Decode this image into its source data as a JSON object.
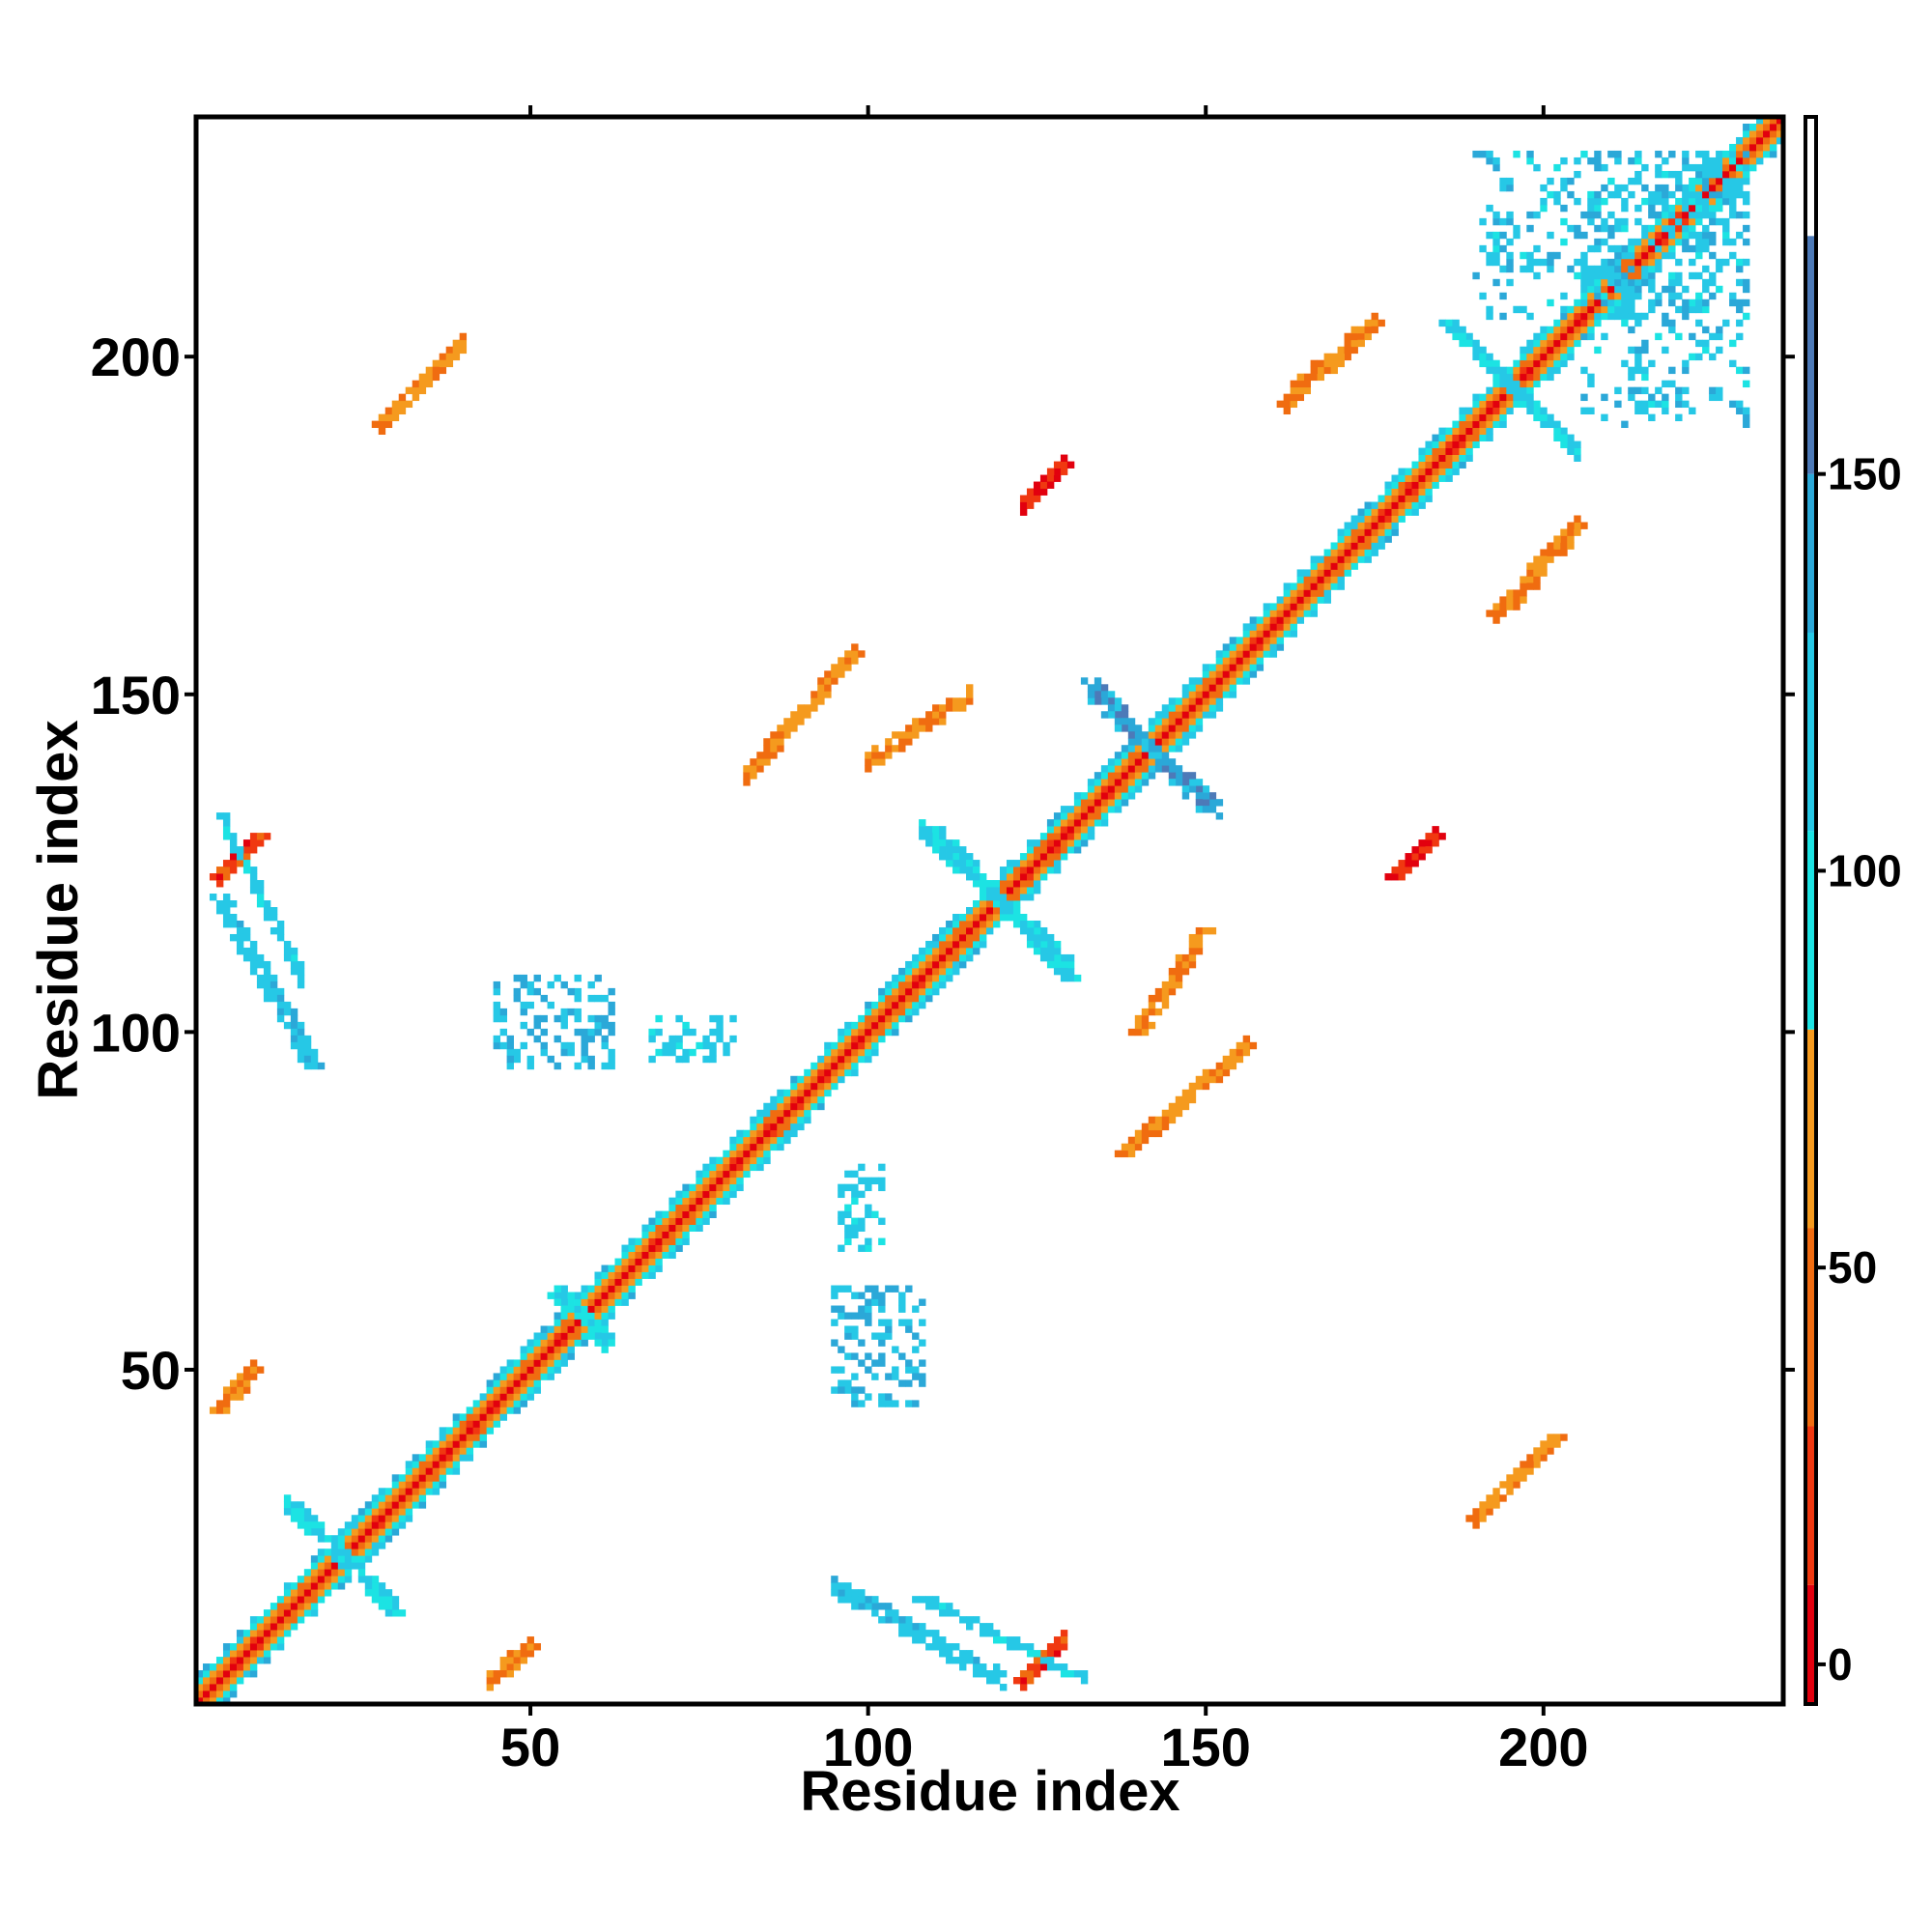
{
  "chart_data": {
    "type": "heatmap",
    "title": "",
    "xlabel": "Residue index",
    "ylabel": "Residue index",
    "xlim": [
      1,
      235
    ],
    "ylim": [
      1,
      235
    ],
    "x_ticks": [
      50,
      100,
      150,
      200
    ],
    "y_ticks": [
      50,
      100,
      150,
      200
    ],
    "colorbar": {
      "range": [
        -5,
        195
      ],
      "ticks": [
        0,
        50,
        100,
        150
      ],
      "stops": [
        {
          "from": -5,
          "to": 10,
          "color": "#e2000e"
        },
        {
          "from": 10,
          "to": 30,
          "color": "#f03810"
        },
        {
          "from": 30,
          "to": 55,
          "color": "#f06c10"
        },
        {
          "from": 55,
          "to": 80,
          "color": "#f59a1e"
        },
        {
          "from": 80,
          "to": 105,
          "color": "#1ce3e3"
        },
        {
          "from": 105,
          "to": 130,
          "color": "#26c8e6"
        },
        {
          "from": 130,
          "to": 150,
          "color": "#2ba8d8"
        },
        {
          "from": 150,
          "to": 180,
          "color": "#4d7ab8"
        },
        {
          "from": 180,
          "to": 195,
          "color": "#ffffff"
        }
      ]
    },
    "diagonal": {
      "from": 1,
      "to": 235,
      "core_value": 0,
      "band_values": [
        40,
        65,
        95,
        120
      ]
    },
    "clusters": [
      {
        "label": "beta-pair-A",
        "x_range": [
          4,
          9
        ],
        "y_range": [
          44,
          50
        ],
        "value": 55,
        "orientation": "parallel"
      },
      {
        "label": "beta-pair-B",
        "x_range": [
          45,
          50
        ],
        "y_range": [
          4,
          9
        ],
        "value": 55,
        "orientation": "parallel"
      },
      {
        "label": "beta-pair-C",
        "x_range": [
          4,
          10
        ],
        "y_range": [
          123,
          129
        ],
        "value": 20,
        "orientation": "parallel"
      },
      {
        "label": "beta-pair-D",
        "x_range": [
          123,
          129
        ],
        "y_range": [
          4,
          10
        ],
        "value": 20,
        "orientation": "parallel"
      },
      {
        "label": "beta-pair-E",
        "x_range": [
          123,
          129
        ],
        "y_range": [
          178,
          184
        ],
        "value": 15,
        "orientation": "parallel"
      },
      {
        "label": "beta-pair-F",
        "x_range": [
          178,
          184
        ],
        "y_range": [
          123,
          129
        ],
        "value": 15,
        "orientation": "parallel"
      },
      {
        "label": "contact-G",
        "x_range": [
          28,
          40
        ],
        "y_range": [
          190,
          202
        ],
        "value": 60,
        "orientation": "parallel"
      },
      {
        "label": "contact-H",
        "x_range": [
          82,
          98
        ],
        "y_range": [
          138,
          156
        ],
        "value": 60,
        "orientation": "parallel"
      },
      {
        "label": "contact-I",
        "x_range": [
          138,
          156
        ],
        "y_range": [
          82,
          98
        ],
        "value": 60,
        "orientation": "parallel"
      },
      {
        "label": "contact-J",
        "x_range": [
          190,
          202
        ],
        "y_range": [
          28,
          40
        ],
        "value": 60,
        "orientation": "parallel"
      },
      {
        "label": "contact-K",
        "x_range": [
          162,
          175
        ],
        "y_range": [
          193,
          205
        ],
        "value": 60,
        "orientation": "parallel"
      },
      {
        "label": "contact-L",
        "x_range": [
          193,
          205
        ],
        "y_range": [
          162,
          175
        ],
        "value": 60,
        "orientation": "parallel"
      },
      {
        "label": "contact-M",
        "x_range": [
          195,
          205
        ],
        "y_range": [
          163,
          175
        ],
        "value": 55,
        "orientation": "parallel"
      },
      {
        "label": "contact-N",
        "x_range": [
          140,
          150
        ],
        "y_range": [
          100,
          115
        ],
        "value": 60,
        "orientation": "parallel"
      },
      {
        "label": "cyan-O",
        "x_range": [
          108,
          132
        ],
        "y_range": [
          4,
          16
        ],
        "value": 115,
        "orientation": "anti"
      },
      {
        "label": "cyan-P",
        "x_range": [
          4,
          18
        ],
        "y_range": [
          95,
          120
        ],
        "value": 120,
        "orientation": "anti"
      },
      {
        "label": "cyan-Q",
        "x_range": [
          95,
          108
        ],
        "y_range": [
          45,
          62
        ],
        "value": 125,
        "orientation": "block"
      },
      {
        "label": "cyan-R",
        "x_range": [
          45,
          62
        ],
        "y_range": [
          95,
          108
        ],
        "value": 125,
        "orientation": "block"
      },
      {
        "label": "cyan-S",
        "x_range": [
          68,
          80
        ],
        "y_range": [
          96,
          102
        ],
        "value": 110,
        "orientation": "block"
      },
      {
        "label": "cyan-T",
        "x_range": [
          96,
          102
        ],
        "y_range": [
          68,
          80
        ],
        "value": 110,
        "orientation": "block"
      },
      {
        "label": "cyan-U",
        "x_range": [
          110,
          130
        ],
        "y_range": [
          108,
          130
        ],
        "value": 110,
        "orientation": "anti"
      },
      {
        "label": "cyan-V",
        "x_range": [
          133,
          150
        ],
        "y_range": [
          133,
          152
        ],
        "value": 140,
        "orientation": "anti"
      },
      {
        "label": "cyan-W",
        "x_range": [
          186,
          205
        ],
        "y_range": [
          186,
          205
        ],
        "value": 110,
        "orientation": "anti"
      },
      {
        "label": "cyan-X",
        "x_range": [
          15,
          30
        ],
        "y_range": [
          14,
          30
        ],
        "value": 105,
        "orientation": "anti"
      },
      {
        "label": "cyan-Y",
        "x_range": [
          54,
          62
        ],
        "y_range": [
          53,
          62
        ],
        "value": 100,
        "orientation": "anti"
      },
      {
        "label": "cyan-Z",
        "x_range": [
          206,
          230
        ],
        "y_range": [
          190,
          230
        ],
        "value": 120,
        "orientation": "block"
      }
    ]
  }
}
